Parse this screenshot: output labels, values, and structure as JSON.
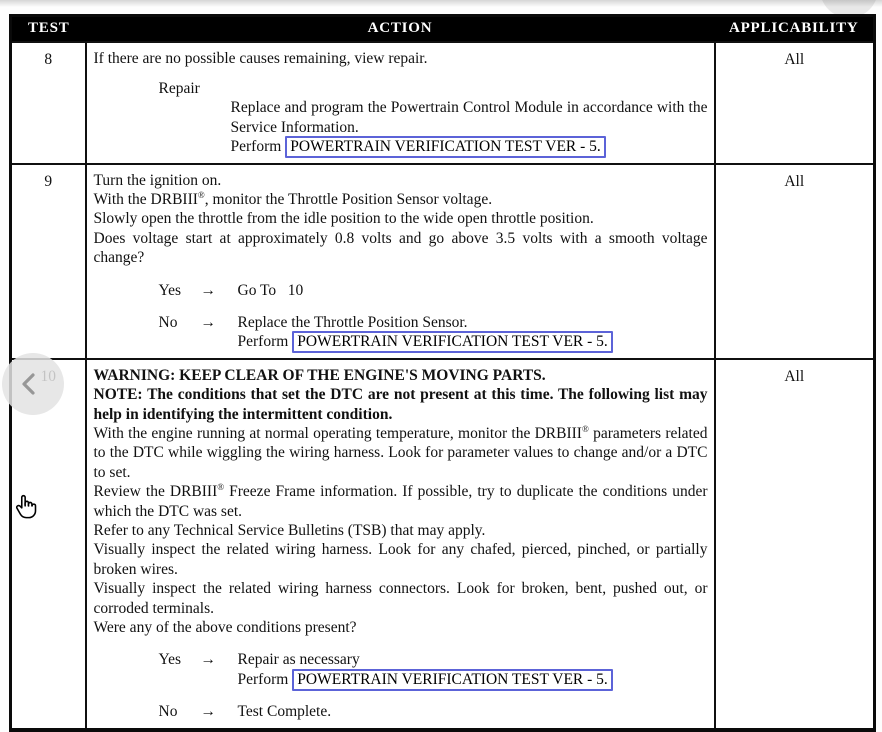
{
  "table": {
    "header": {
      "test": "TEST",
      "action": "ACTION",
      "applicability": "APPLICABILITY"
    },
    "link_color": "#5c63d8",
    "rows": [
      {
        "test": "8",
        "applicability": "All",
        "action": [
          {
            "type": "para",
            "indent": 0,
            "spans": [
              {
                "t": "If there are no possible causes remaining, view repair."
              }
            ]
          },
          {
            "type": "para",
            "indent": 1,
            "gap": true,
            "spans": [
              {
                "t": "Repair"
              }
            ]
          },
          {
            "type": "para",
            "indent": 2,
            "spans": [
              {
                "t": "Replace and program the Powertrain Control Module in accordance with the Service Information."
              }
            ]
          },
          {
            "type": "para",
            "indent": 2,
            "spans": [
              {
                "t": "Perform"
              },
              {
                "t": "POWERTRAIN VERIFICATION TEST VER - 5.",
                "link": true
              }
            ]
          }
        ]
      },
      {
        "test": "9",
        "applicability": "All",
        "action": [
          {
            "type": "para",
            "indent": 0,
            "spans": [
              {
                "t": "Turn the ignition on."
              }
            ]
          },
          {
            "type": "para",
            "indent": 0,
            "spans": [
              {
                "t": "With the DRBIII®, monitor the Throttle Position Sensor voltage."
              }
            ]
          },
          {
            "type": "para",
            "indent": 0,
            "spans": [
              {
                "t": "Slowly open the throttle from the idle position to the wide open throttle position."
              }
            ]
          },
          {
            "type": "para",
            "indent": 0,
            "spans": [
              {
                "t": "Does voltage start at approximately 0.8 volts and go above 3.5 volts with a smooth voltage change?"
              }
            ]
          },
          {
            "type": "branch",
            "gap": true,
            "label": "Yes",
            "arrow": "→",
            "lines": [
              {
                "spans": [
                  {
                    "t": "Go To   10"
                  }
                ]
              }
            ]
          },
          {
            "type": "branch",
            "gap": true,
            "label": "No",
            "arrow": "→",
            "lines": [
              {
                "spans": [
                  {
                    "t": "Replace the Throttle Position Sensor."
                  }
                ]
              },
              {
                "spans": [
                  {
                    "t": "Perform"
                  },
                  {
                    "t": "POWERTRAIN VERIFICATION TEST VER - 5.",
                    "link": true
                  }
                ]
              }
            ]
          }
        ]
      },
      {
        "test": "10",
        "applicability": "All",
        "action": [
          {
            "type": "para",
            "indent": 0,
            "bold": true,
            "spans": [
              {
                "t": "WARNING: KEEP CLEAR OF THE ENGINE'S MOVING PARTS."
              }
            ]
          },
          {
            "type": "para",
            "indent": 0,
            "bold": true,
            "spans": [
              {
                "t": "NOTE: The conditions that set the DTC are not present at this time. The following list may help in identifying the intermittent condition."
              }
            ]
          },
          {
            "type": "para",
            "indent": 0,
            "spans": [
              {
                "t": "With the engine running at normal operating temperature, monitor the DRBIII® parameters related to the DTC while wiggling the wiring harness. Look for parameter values to change and/or a DTC to set."
              }
            ]
          },
          {
            "type": "para",
            "indent": 0,
            "spans": [
              {
                "t": "Review the DRBIII® Freeze Frame information. If possible, try to duplicate the conditions under which the DTC was set."
              }
            ]
          },
          {
            "type": "para",
            "indent": 0,
            "spans": [
              {
                "t": "Refer to any Technical Service Bulletins (TSB) that may apply."
              }
            ]
          },
          {
            "type": "para",
            "indent": 0,
            "spans": [
              {
                "t": "Visually inspect the related wiring harness. Look for any chafed, pierced, pinched, or partially broken wires."
              }
            ]
          },
          {
            "type": "para",
            "indent": 0,
            "spans": [
              {
                "t": "Visually inspect the related wiring harness connectors. Look for broken, bent, pushed out, or corroded terminals."
              }
            ]
          },
          {
            "type": "para",
            "indent": 0,
            "spans": [
              {
                "t": "Were any of the above conditions present?"
              }
            ]
          },
          {
            "type": "branch",
            "gap": true,
            "label": "Yes",
            "arrow": "→",
            "lines": [
              {
                "spans": [
                  {
                    "t": "Repair as necessary"
                  }
                ]
              },
              {
                "spans": [
                  {
                    "t": "Perform"
                  },
                  {
                    "t": "POWERTRAIN VERIFICATION TEST VER - 5.",
                    "link": true
                  }
                ]
              }
            ]
          },
          {
            "type": "branch",
            "gap": true,
            "label": "No",
            "arrow": "→",
            "lines": [
              {
                "spans": [
                  {
                    "t": "Test Complete."
                  }
                ]
              }
            ]
          }
        ]
      }
    ]
  },
  "icons": {
    "back_button": "chevron-left-icon",
    "cursor": "hand-pointer-icon",
    "registered_mark": "®"
  }
}
